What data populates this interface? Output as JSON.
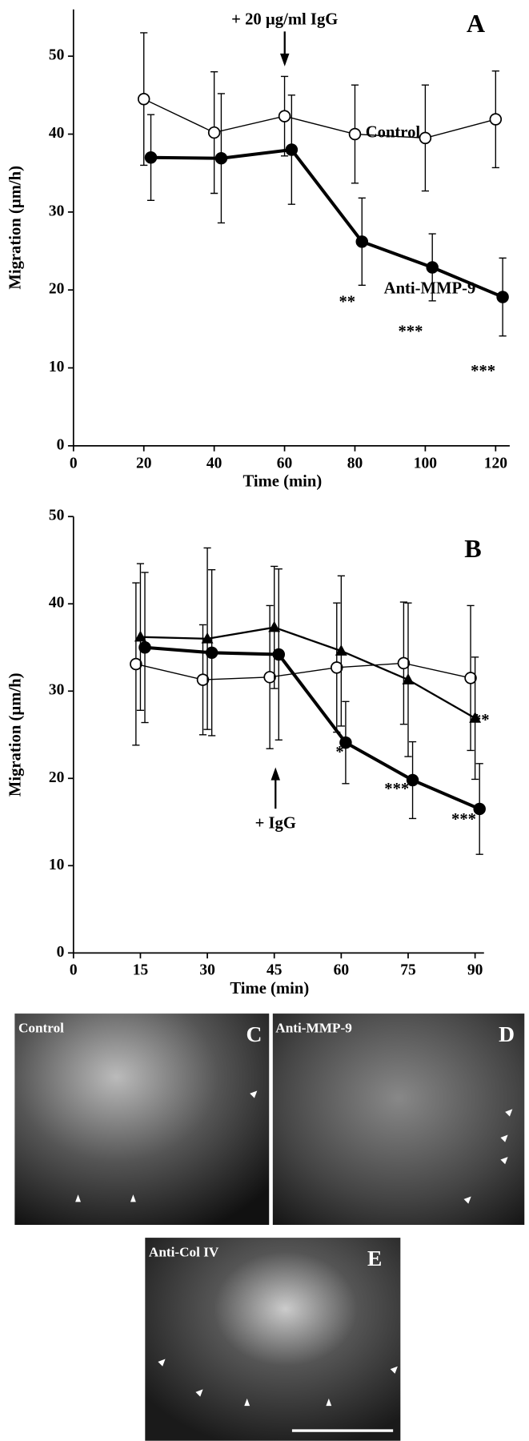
{
  "chart_data": [
    {
      "type": "line",
      "panel_label": "A",
      "x_label": "Time (min)",
      "y_label": "Migration (µm/h)",
      "xlim": [
        0,
        124
      ],
      "ylim": [
        0,
        56
      ],
      "xticks": [
        0,
        20,
        40,
        60,
        80,
        100,
        120
      ],
      "yticks": [
        0,
        10,
        20,
        30,
        40,
        50
      ],
      "series": [
        {
          "marker": "open-circle",
          "color": "#000000",
          "line_width": 1.2,
          "x": [
            20,
            40,
            60,
            80,
            100,
            120
          ],
          "values": [
            44.5,
            40.2,
            42.3,
            40,
            39.5,
            41.9
          ],
          "errors": [
            8.5,
            7.8,
            5.1,
            6.3,
            6.8,
            6.2
          ]
        },
        {
          "marker": "filled-circle",
          "color": "#000000",
          "line_width": 3.5,
          "x": [
            22,
            42,
            62,
            82,
            102,
            122
          ],
          "values": [
            37,
            36.9,
            38,
            26.2,
            22.9,
            19.1
          ],
          "errors": [
            5.5,
            8.3,
            7,
            5.6,
            4.3,
            5
          ]
        }
      ],
      "annotations": [
        {
          "text": "+ 20 µg/ml IgG"
        },
        {
          "text": "Control"
        },
        {
          "text": "Anti-MMP-9"
        },
        {
          "text": "**"
        },
        {
          "text": "***"
        },
        {
          "text": "***"
        }
      ]
    },
    {
      "type": "line",
      "panel_label": "B",
      "x_label": "Time (min)",
      "y_label": "Migration (µm/h)",
      "xlim": [
        0,
        92
      ],
      "ylim": [
        0,
        50
      ],
      "xticks": [
        0,
        15,
        30,
        45,
        60,
        75,
        90
      ],
      "yticks": [
        0,
        10,
        20,
        30,
        40,
        50
      ],
      "series": [
        {
          "marker": "open-circle",
          "color": "#000000",
          "line_width": 1.2,
          "x": [
            14,
            29,
            44,
            59,
            74,
            89
          ],
          "values": [
            33.1,
            31.3,
            31.6,
            32.7,
            33.2,
            31.5
          ],
          "errors": [
            9.3,
            6.3,
            8.2,
            7.4,
            7,
            8.3
          ]
        },
        {
          "marker": "filled-triangle",
          "color": "#000000",
          "line_width": 2,
          "x": [
            15,
            30,
            45,
            60,
            75,
            90
          ],
          "values": [
            36.2,
            36,
            37.3,
            34.6,
            31.3,
            26.9
          ],
          "errors": [
            8.4,
            10.4,
            7,
            8.6,
            8.8,
            7
          ]
        },
        {
          "marker": "filled-circle",
          "color": "#000000",
          "line_width": 3.5,
          "x": [
            16,
            31,
            46,
            61,
            76,
            91
          ],
          "values": [
            35,
            34.4,
            34.2,
            24.1,
            19.8,
            16.5
          ],
          "errors": [
            8.6,
            9.5,
            9.8,
            4.7,
            4.4,
            5.2
          ]
        }
      ],
      "annotations": [
        {
          "text": "+ IgG"
        },
        {
          "text": "*"
        },
        {
          "text": "***"
        },
        {
          "text": "***"
        },
        {
          "text": "**"
        }
      ]
    }
  ],
  "panels": [
    {
      "label": "C",
      "caption": "Control"
    },
    {
      "label": "D",
      "caption": "Anti-MMP-9"
    },
    {
      "label": "E",
      "caption": "Anti-Col IV"
    }
  ]
}
